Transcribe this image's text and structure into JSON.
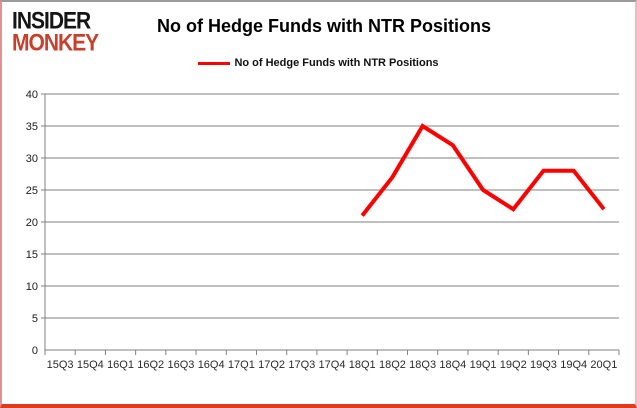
{
  "logo": {
    "line1": "INSIDER",
    "line2": "MONKEY"
  },
  "header": {
    "title": "No of Hedge Funds with NTR Positions"
  },
  "legend": {
    "label": "No of Hedge Funds with NTR Positions"
  },
  "colors": {
    "series": "#ff0000",
    "grid": "#808080",
    "logo_black": "#151515",
    "logo_red": "#c8402c",
    "border_bottom": "#e23a1f"
  },
  "chart_data": {
    "type": "line",
    "title": "No of Hedge Funds with NTR Positions",
    "categories": [
      "15Q3",
      "15Q4",
      "16Q1",
      "16Q2",
      "16Q3",
      "16Q4",
      "17Q1",
      "17Q2",
      "17Q3",
      "17Q4",
      "18Q1",
      "18Q2",
      "18Q3",
      "18Q4",
      "19Q1",
      "19Q2",
      "19Q3",
      "19Q4",
      "20Q1"
    ],
    "series": [
      {
        "name": "No of Hedge Funds with NTR Positions",
        "values": [
          null,
          null,
          null,
          null,
          null,
          null,
          null,
          null,
          null,
          null,
          21,
          27,
          35,
          32,
          25,
          22,
          28,
          28,
          22
        ]
      }
    ],
    "xlabel": "",
    "ylabel": "",
    "ylim": [
      0,
      40
    ],
    "ytick_step": 5,
    "grid": true,
    "legend_position": "top-center"
  }
}
